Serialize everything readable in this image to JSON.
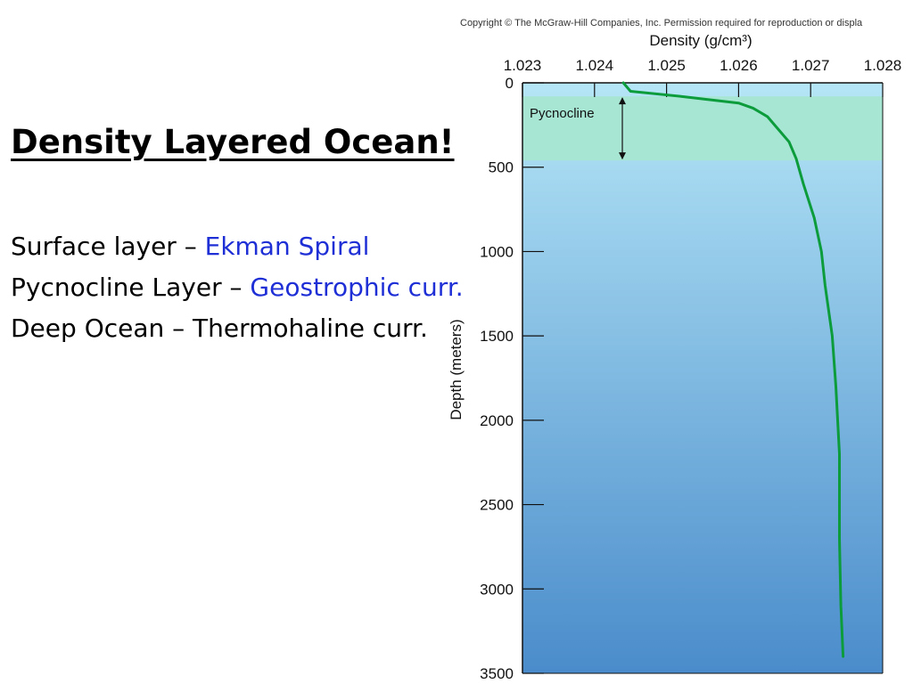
{
  "slide": {
    "title": "Density Layered Ocean!",
    "bullets": [
      {
        "prefix": "Surface layer – ",
        "highlight": "Ekman Spiral",
        "suffix": ""
      },
      {
        "prefix": "Pycnocline Layer – ",
        "highlight": "Geostrophic curr.",
        "suffix": ""
      },
      {
        "prefix": "Deep Ocean – Thermohaline curr.",
        "highlight": "",
        "suffix": ""
      }
    ]
  },
  "chart_data": {
    "type": "line",
    "copyright": "Copyright © The McGraw-Hill Companies, Inc. Permission required for reproduction or displa",
    "xlabel": "Density (g/cm³)",
    "ylabel": "Depth (meters)",
    "x_ticks": [
      1.023,
      1.024,
      1.025,
      1.026,
      1.027,
      1.028
    ],
    "x_tick_labels": [
      "1.023",
      "1.024",
      "1.025",
      "1.026",
      "1.027",
      "1.028"
    ],
    "y_ticks": [
      0,
      500,
      1000,
      1500,
      2000,
      2500,
      3000,
      3500
    ],
    "xlim": [
      1.023,
      1.028
    ],
    "ylim": [
      0,
      3500
    ],
    "y_inverted": true,
    "x_axis_position": "top",
    "grid": false,
    "pycnocline": {
      "label": "Pycnocline",
      "depth_range": [
        80,
        460
      ],
      "color": "#a8e6d4"
    },
    "colors": {
      "line": "#0c9c3c",
      "water_top": "#b5e6f7",
      "water_bottom": "#4a8ccb"
    },
    "series": [
      {
        "x": [
          1.0244,
          1.0245,
          1.0252,
          1.026,
          1.0262,
          1.0264,
          1.0265,
          1.0267,
          1.0268,
          1.0269,
          1.02705,
          1.02715,
          1.0272,
          1.0273,
          1.02735,
          1.0274,
          1.0274,
          1.02742,
          1.02745
        ],
        "y": [
          0,
          50,
          80,
          120,
          150,
          200,
          250,
          350,
          450,
          600,
          800,
          1000,
          1200,
          1500,
          1800,
          2200,
          2700,
          3100,
          3400
        ]
      }
    ]
  }
}
